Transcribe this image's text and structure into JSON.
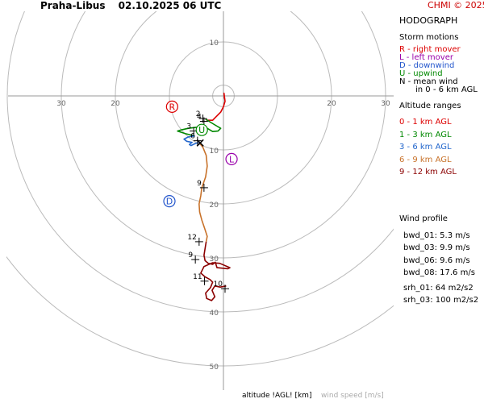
{
  "header": {
    "station": "Praha-Libus",
    "datetime": "02.10.2025 06 UTC",
    "credit": "CHMI © 2025"
  },
  "footer": {
    "altitude_label": "altitude !AGL! [km]",
    "wind_speed_label": "wind speed [m/s]"
  },
  "panel": {
    "title": "HODOGRAPH",
    "storm_motions_title": "Storm motions",
    "storm_motions": [
      {
        "text": "R - right mover",
        "color": "#dd0000"
      },
      {
        "text": "L - left mover",
        "color": "#9900aa"
      },
      {
        "text": "D - downwind",
        "color": "#2255cc"
      },
      {
        "text": "U - upwind",
        "color": "#008800"
      },
      {
        "text": "N - mean wind",
        "color": "#000000"
      },
      {
        "text": "in 0 - 6 km AGL",
        "color": "#000000"
      }
    ],
    "altitude_ranges_title": "Altitude ranges",
    "altitude_ranges": [
      {
        "text": "0 - 1 km AGL",
        "color": "#dd0000"
      },
      {
        "text": "1 - 3 km AGL",
        "color": "#008800"
      },
      {
        "text": "3 - 6 km AGL",
        "color": "#2266cc"
      },
      {
        "text": "6 - 9 km AGL",
        "color": "#c8722a"
      },
      {
        "text": "9 - 12 km AGL",
        "color": "#8b0000"
      }
    ],
    "wind_profile_title": "Wind profile",
    "wind_profile": [
      "bwd_01: 5.3 m/s",
      "bwd_03: 9.9 m/s",
      "bwd_06: 9.6 m/s",
      "bwd_08: 17.6 m/s",
      "srh_01: 64 m2/s2",
      "srh_03: 100 m2/s2"
    ]
  },
  "chart_data": {
    "type": "line",
    "axis_units": "m/s",
    "rings": [
      10,
      20,
      30,
      40,
      50
    ],
    "x_tick_labels": [
      {
        "value": -30,
        "label": "30"
      },
      {
        "value": -20,
        "label": "20"
      },
      {
        "value": 20,
        "label": "20"
      },
      {
        "value": 30,
        "label": "30"
      }
    ],
    "y_tick_labels": [
      {
        "value": 10,
        "label": "10"
      },
      {
        "value": -10,
        "label": "10"
      },
      {
        "value": -20,
        "label": "20"
      },
      {
        "value": -30,
        "label": "30"
      },
      {
        "value": -40,
        "label": "40"
      },
      {
        "value": -50,
        "label": "50"
      }
    ],
    "series": [
      {
        "range": "0-1",
        "color": "#dd0000",
        "points": [
          [
            0.2,
            -0.5
          ],
          [
            0.1,
            0.5
          ],
          [
            0.3,
            -1
          ],
          [
            0,
            -2
          ],
          [
            -0.5,
            -3
          ],
          [
            -1.5,
            -4
          ],
          [
            -2,
            -4.5
          ],
          [
            -3,
            -4.5
          ],
          [
            -3.3,
            -4.3
          ]
        ]
      },
      {
        "range": "1-3",
        "color": "#008800",
        "points": [
          [
            -3.3,
            -4.3
          ],
          [
            -2.2,
            -5
          ],
          [
            -1.2,
            -5.6
          ],
          [
            -0.5,
            -6
          ],
          [
            -1,
            -6.5
          ],
          [
            -2,
            -6.6
          ],
          [
            -3,
            -6
          ],
          [
            -4,
            -5.7
          ],
          [
            -5,
            -5.8
          ],
          [
            -6.5,
            -6
          ],
          [
            -7.8,
            -6.3
          ],
          [
            -8.5,
            -6.5
          ],
          [
            -7,
            -7
          ],
          [
            -5.3,
            -7.4
          ]
        ]
      },
      {
        "range": "3-6",
        "color": "#2266cc",
        "points": [
          [
            -5.3,
            -7.4
          ],
          [
            -6.5,
            -7.6
          ],
          [
            -7.3,
            -8
          ],
          [
            -6.8,
            -8.4
          ],
          [
            -5.8,
            -8.6
          ],
          [
            -6.3,
            -9
          ],
          [
            -6,
            -9.2
          ],
          [
            -5.2,
            -8.8
          ],
          [
            -4.5,
            -8.6
          ]
        ]
      },
      {
        "range": "6-9",
        "color": "#c8722a",
        "points": [
          [
            -4.5,
            -8.6
          ],
          [
            -3.8,
            -9.5
          ],
          [
            -3.2,
            -11
          ],
          [
            -3,
            -13
          ],
          [
            -3.3,
            -15
          ],
          [
            -4,
            -17
          ],
          [
            -4.2,
            -18.5
          ],
          [
            -4.5,
            -20
          ],
          [
            -4.4,
            -21.5
          ],
          [
            -4,
            -23
          ],
          [
            -3.5,
            -24.5
          ],
          [
            -3,
            -26
          ],
          [
            -3.2,
            -27
          ]
        ]
      },
      {
        "range": "9-12",
        "color": "#8b0000",
        "points": [
          [
            -3.2,
            -27
          ],
          [
            -3.6,
            -29.5
          ],
          [
            -3.4,
            -30.5
          ],
          [
            -2.8,
            -31
          ],
          [
            -2,
            -31.2
          ],
          [
            -1.5,
            -30.8
          ],
          [
            -1.2,
            -31.8
          ],
          [
            0.8,
            -32
          ],
          [
            1.2,
            -31.8
          ],
          [
            -0.7,
            -31
          ],
          [
            -2,
            -30.9
          ],
          [
            -2.7,
            -31.2
          ],
          [
            -3.6,
            -31.6
          ],
          [
            -4.2,
            -32.8
          ],
          [
            -3.4,
            -33.5
          ],
          [
            -2.5,
            -34
          ],
          [
            -2,
            -34.5
          ],
          [
            -2.4,
            -35.5
          ],
          [
            -3.3,
            -36.5
          ],
          [
            -3.1,
            -37.5
          ],
          [
            -2.2,
            -37.9
          ],
          [
            -1.6,
            -37.2
          ],
          [
            -2.1,
            -36
          ],
          [
            -1.6,
            -35.2
          ],
          [
            -0.6,
            -35.4
          ],
          [
            0.5,
            -35.2
          ]
        ]
      }
    ],
    "height_markers": [
      {
        "label": "2",
        "x": -3.8,
        "y": -4.2
      },
      {
        "label": "4",
        "x": -3.6,
        "y": -4.7
      },
      {
        "label": "3",
        "x": -5.5,
        "y": -6.5
      },
      {
        "label": "6",
        "x": -4.8,
        "y": -8.3
      },
      {
        "label": "9",
        "x": -3.6,
        "y": -17
      },
      {
        "label": "12",
        "x": -4.5,
        "y": -27
      },
      {
        "label": "9",
        "x": -5.2,
        "y": -30.3
      },
      {
        "label": "11",
        "x": -3.5,
        "y": -34.3
      },
      {
        "label": "10",
        "x": 0.3,
        "y": -35.7
      }
    ],
    "storm_markers": [
      {
        "letter": "R",
        "x": -9.5,
        "y": -2,
        "color": "#dd0000"
      },
      {
        "letter": "U",
        "x": -4,
        "y": -6.3,
        "color": "#008800"
      },
      {
        "letter": "L",
        "x": 1.5,
        "y": -11.7,
        "color": "#9900aa"
      },
      {
        "letter": "D",
        "x": -10,
        "y": -19.5,
        "color": "#2255cc"
      },
      {
        "letter": "N",
        "x": -4.3,
        "y": -8.7,
        "color": "#000000"
      }
    ]
  }
}
